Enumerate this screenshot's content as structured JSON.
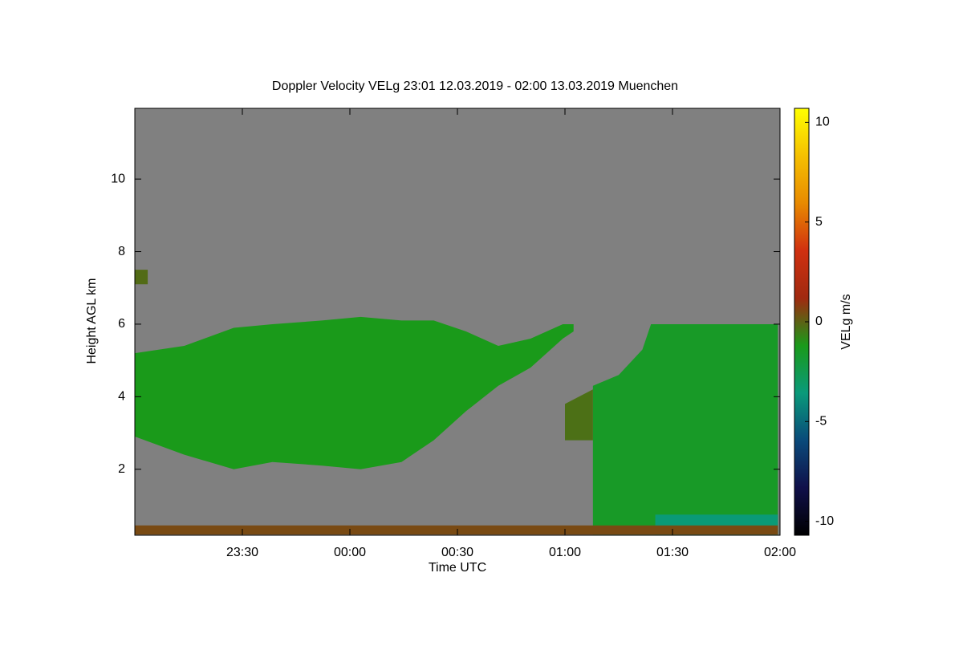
{
  "chart_data": {
    "type": "time-height",
    "title": "Doppler Velocity VELg   23:01 12.03.2019 - 02:00 13.03.2019 Muenchen",
    "x_label": "Time UTC",
    "y_label": "Height AGL km",
    "colorbar_label": "VELg m/s",
    "xlim": [
      23.0,
      26.0
    ],
    "xticks": [
      {
        "value": 23.5,
        "label": "23:30"
      },
      {
        "value": 24.0,
        "label": "00:00"
      },
      {
        "value": 24.5,
        "label": "00:30"
      },
      {
        "value": 25.0,
        "label": "01:00"
      },
      {
        "value": 25.5,
        "label": "01:30"
      },
      {
        "value": 26.0,
        "label": "02:00"
      }
    ],
    "ylim": [
      0.18,
      11.95
    ],
    "yticks": [
      2,
      4,
      6,
      8,
      10
    ],
    "zlim": [
      -10.7,
      10.7
    ],
    "zticks": [
      10,
      5,
      0,
      -5,
      -10
    ],
    "background": "#808080",
    "colors": [
      "#000000",
      "#10104a",
      "#0a4a7a",
      "#0a9a7a",
      "#1a9a1a",
      "#a02a10",
      "#d03010",
      "#e88a00",
      "#f5c000",
      "#ffff00"
    ],
    "layers": [
      {
        "x": [
          23.0,
          23.23,
          23.46,
          23.64,
          23.87,
          24.05,
          24.24,
          24.39,
          24.54,
          24.69,
          24.84,
          24.99,
          25.04
        ],
        "base": [
          2.9,
          2.4,
          2.0,
          2.2,
          2.1,
          2.0,
          2.2,
          2.8,
          3.6,
          4.3,
          4.8,
          5.6,
          5.8
        ],
        "top": [
          5.2,
          5.4,
          5.9,
          6.0,
          6.1,
          6.2,
          6.1,
          6.1,
          5.8,
          5.4,
          5.6,
          6.0,
          6.0
        ],
        "velocity": -1.2
      },
      {
        "x": [
          25.13,
          25.25,
          25.36,
          25.4,
          25.58,
          25.81,
          25.99
        ],
        "base": [
          0.2,
          0.2,
          0.2,
          0.2,
          0.2,
          0.2,
          0.2
        ],
        "top": [
          4.3,
          4.6,
          5.3,
          6.0,
          6.0,
          6.0,
          6.0
        ],
        "velocity": -1.5
      },
      {
        "x": [
          25.0,
          25.13
        ],
        "base": [
          2.8,
          2.8
        ],
        "top": [
          3.8,
          4.2
        ],
        "velocity": -0.3
      },
      {
        "x": [
          25.42,
          25.99
        ],
        "base": [
          0.2,
          0.2
        ],
        "top": [
          0.75,
          0.75
        ],
        "velocity": -3.5
      },
      {
        "x": [
          23.0,
          25.99
        ],
        "base": [
          0.2,
          0.2
        ],
        "top": [
          0.45,
          0.45
        ],
        "velocity": 0.5
      },
      {
        "x": [
          23.0,
          23.06
        ],
        "base": [
          7.1,
          7.1
        ],
        "top": [
          7.5,
          7.5
        ],
        "velocity": -0.2
      }
    ]
  }
}
